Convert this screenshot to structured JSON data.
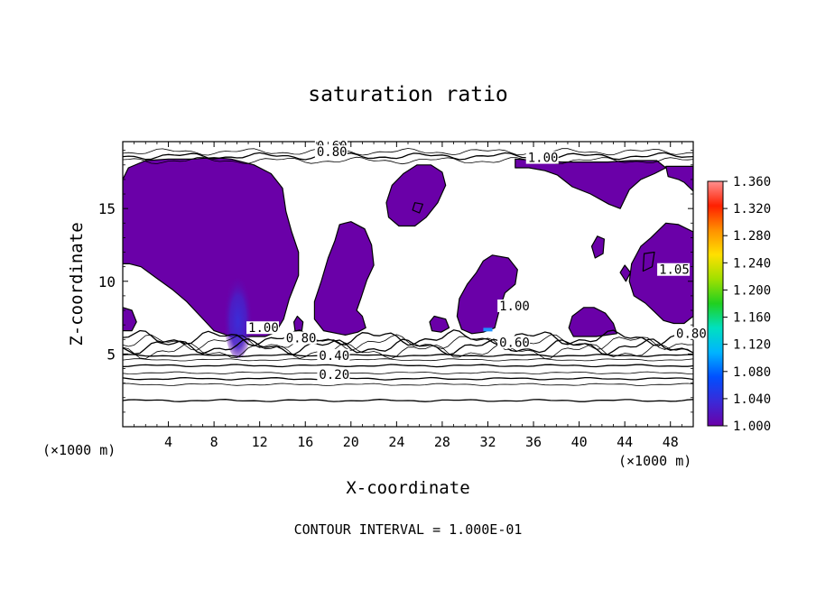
{
  "chart_data": {
    "type": "contour",
    "title": "saturation ratio",
    "xlabel": "X-coordinate",
    "ylabel": "Z-coordinate",
    "x_unit_label": "(×1000 m)",
    "x_unit_label_right": "(×1000 m)",
    "footer": "CONTOUR INTERVAL = 1.000E-01",
    "xlim": [
      0,
      50
    ],
    "ylim": [
      0,
      19.6
    ],
    "x_ticks": [
      4,
      8,
      12,
      16,
      20,
      24,
      28,
      32,
      36,
      40,
      44,
      48
    ],
    "x_tick_labels": [
      "4",
      "8",
      "12",
      "16",
      "20",
      "24",
      "28",
      "32",
      "36",
      "40",
      "44",
      "48"
    ],
    "y_ticks": [
      5,
      10,
      15
    ],
    "y_tick_labels": [
      "5",
      "10",
      "15"
    ],
    "contour_labels": [
      {
        "text": "0.60",
        "x": 17.0,
        "y": 19.0
      },
      {
        "text": "0.80",
        "x": 17.0,
        "y": 18.6
      },
      {
        "text": "1.00",
        "x": 35.5,
        "y": 18.2
      },
      {
        "text": "1.00",
        "x": 11.0,
        "y": 6.5
      },
      {
        "text": "0.80",
        "x": 14.3,
        "y": 5.8
      },
      {
        "text": "0.60",
        "x": 33.0,
        "y": 5.5
      },
      {
        "text": "0.40",
        "x": 17.2,
        "y": 4.6
      },
      {
        "text": "0.20",
        "x": 17.2,
        "y": 3.3
      },
      {
        "text": "1.00",
        "x": 33.0,
        "y": 8.0
      },
      {
        "text": "1.05",
        "x": 47.0,
        "y": 10.5
      },
      {
        "text": "0.80",
        "x": 48.5,
        "y": 6.1
      }
    ],
    "level_lines": [
      1.8,
      2.9,
      3.3,
      3.7,
      4.2,
      4.6,
      4.9,
      5.2,
      5.5,
      5.8,
      6.1,
      18.3,
      18.6,
      18.9
    ],
    "colorbar": {
      "min": 1.0,
      "max": 1.36,
      "tick_labels": [
        "1.360",
        "1.320",
        "1.280",
        "1.240",
        "1.200",
        "1.160",
        "1.120",
        "1.080",
        "1.040",
        "1.000"
      ],
      "colors": [
        "#6a00a8",
        "#3a2ad8",
        "#0050ff",
        "#00b4ff",
        "#00e0c0",
        "#20d020",
        "#a0e000",
        "#ffe000",
        "#ff9000",
        "#ff2000",
        "#ff9090"
      ]
    },
    "fill_color": "#6a00a8",
    "regions": [
      {
        "name": "region-1",
        "points": [
          [
            0,
            17.0
          ],
          [
            0.5,
            17.8
          ],
          [
            2,
            18.3
          ],
          [
            4,
            18.4
          ],
          [
            6,
            18.4
          ],
          [
            8,
            18.5
          ],
          [
            9.5,
            18.4
          ],
          [
            11.5,
            18.0
          ],
          [
            13,
            17.4
          ],
          [
            14,
            16.4
          ],
          [
            14.3,
            14.8
          ],
          [
            14.8,
            13.4
          ],
          [
            15.4,
            12.0
          ],
          [
            15.4,
            10.4
          ],
          [
            14.6,
            8.8
          ],
          [
            14.1,
            7.4
          ],
          [
            13.4,
            6.5
          ],
          [
            12.5,
            6.2
          ],
          [
            9.5,
            6.2
          ],
          [
            8.0,
            6.6
          ],
          [
            6.8,
            7.6
          ],
          [
            5.6,
            8.6
          ],
          [
            4.4,
            9.4
          ],
          [
            3.0,
            10.2
          ],
          [
            1.6,
            11.0
          ],
          [
            0.6,
            11.2
          ],
          [
            0,
            11.2
          ]
        ]
      },
      {
        "name": "region-2",
        "points": [
          [
            0,
            8.2
          ],
          [
            0.8,
            8.0
          ],
          [
            1.2,
            7.2
          ],
          [
            0.8,
            6.6
          ],
          [
            0,
            6.6
          ]
        ]
      },
      {
        "name": "region-3",
        "points": [
          [
            19.0,
            13.9
          ],
          [
            20.0,
            14.1
          ],
          [
            21.2,
            13.6
          ],
          [
            21.8,
            12.5
          ],
          [
            22.0,
            11.1
          ],
          [
            21.4,
            10.1
          ],
          [
            20.9,
            8.9
          ],
          [
            20.5,
            8.0
          ],
          [
            21.0,
            7.6
          ],
          [
            21.3,
            6.8
          ],
          [
            20.6,
            6.5
          ],
          [
            19.5,
            6.3
          ],
          [
            17.6,
            6.6
          ],
          [
            16.8,
            7.4
          ],
          [
            16.8,
            8.6
          ],
          [
            17.4,
            10.0
          ],
          [
            18.0,
            11.6
          ],
          [
            18.6,
            12.8
          ]
        ]
      },
      {
        "name": "region-4",
        "points": [
          [
            15.3,
            7.6
          ],
          [
            15.8,
            7.2
          ],
          [
            15.7,
            6.6
          ],
          [
            15.1,
            6.6
          ],
          [
            15.0,
            7.2
          ]
        ]
      },
      {
        "name": "region-5",
        "points": [
          [
            25.8,
            18.0
          ],
          [
            27.0,
            18.0
          ],
          [
            28.0,
            17.5
          ],
          [
            28.3,
            16.6
          ],
          [
            27.6,
            15.4
          ],
          [
            26.6,
            14.4
          ],
          [
            25.6,
            13.8
          ],
          [
            24.2,
            13.8
          ],
          [
            23.3,
            14.4
          ],
          [
            23.1,
            15.4
          ],
          [
            23.6,
            16.6
          ],
          [
            24.6,
            17.4
          ]
        ]
      },
      {
        "name": "region-6",
        "points": [
          [
            32.4,
            11.8
          ],
          [
            33.8,
            11.6
          ],
          [
            34.6,
            10.8
          ],
          [
            34.4,
            9.8
          ],
          [
            33.5,
            9.2
          ],
          [
            33.0,
            8.0
          ],
          [
            32.6,
            6.8
          ],
          [
            31.6,
            6.5
          ],
          [
            30.6,
            6.4
          ],
          [
            29.7,
            6.7
          ],
          [
            29.3,
            7.6
          ],
          [
            29.5,
            8.8
          ],
          [
            30.2,
            9.8
          ],
          [
            31.0,
            10.6
          ],
          [
            31.6,
            11.4
          ]
        ]
      },
      {
        "name": "region-7",
        "points": [
          [
            27.3,
            7.6
          ],
          [
            28.3,
            7.4
          ],
          [
            28.6,
            6.8
          ],
          [
            27.9,
            6.5
          ],
          [
            27.1,
            6.6
          ],
          [
            26.9,
            7.2
          ]
        ]
      },
      {
        "name": "region-8",
        "points": [
          [
            34.4,
            18.4
          ],
          [
            36.6,
            18.3
          ],
          [
            38.5,
            18.2
          ],
          [
            40.5,
            18.2
          ],
          [
            42.5,
            18.2
          ],
          [
            44.5,
            18.3
          ],
          [
            46.8,
            18.3
          ],
          [
            47.6,
            17.8
          ],
          [
            46.6,
            17.4
          ],
          [
            45.4,
            17.0
          ],
          [
            44.4,
            16.3
          ],
          [
            43.6,
            15.0
          ],
          [
            42.6,
            15.3
          ],
          [
            41.0,
            16.0
          ],
          [
            39.4,
            16.5
          ],
          [
            38.1,
            17.3
          ],
          [
            37.0,
            17.6
          ],
          [
            35.6,
            17.8
          ],
          [
            34.4,
            17.8
          ]
        ]
      },
      {
        "name": "region-9",
        "points": [
          [
            47.6,
            17.9
          ],
          [
            50.0,
            17.9
          ],
          [
            50.0,
            16.2
          ],
          [
            49.2,
            16.8
          ],
          [
            48.7,
            17.0
          ],
          [
            47.8,
            17.2
          ]
        ]
      },
      {
        "name": "region-10",
        "points": [
          [
            47.6,
            14.0
          ],
          [
            48.7,
            13.9
          ],
          [
            50.0,
            13.4
          ],
          [
            50.0,
            7.6
          ],
          [
            49.2,
            7.1
          ],
          [
            48.3,
            7.1
          ],
          [
            47.4,
            7.3
          ],
          [
            46.6,
            7.9
          ],
          [
            45.8,
            8.5
          ],
          [
            44.8,
            9.0
          ],
          [
            44.4,
            10.0
          ],
          [
            44.6,
            11.2
          ],
          [
            45.4,
            12.4
          ],
          [
            46.3,
            13.0
          ]
        ]
      },
      {
        "name": "region-11",
        "points": [
          [
            40.4,
            8.2
          ],
          [
            41.3,
            8.2
          ],
          [
            42.3,
            7.8
          ],
          [
            43.0,
            7.1
          ],
          [
            43.3,
            6.4
          ],
          [
            41.5,
            6.2
          ],
          [
            39.5,
            6.2
          ],
          [
            39.1,
            6.8
          ],
          [
            39.4,
            7.6
          ]
        ]
      },
      {
        "name": "region-12",
        "points": [
          [
            41.6,
            13.1
          ],
          [
            42.2,
            12.9
          ],
          [
            42.1,
            11.9
          ],
          [
            41.4,
            11.6
          ],
          [
            41.1,
            12.4
          ]
        ]
      },
      {
        "name": "region-13",
        "points": [
          [
            44.0,
            11.1
          ],
          [
            44.5,
            10.6
          ],
          [
            44.1,
            10.0
          ],
          [
            43.6,
            10.6
          ]
        ]
      },
      {
        "name": "region-14",
        "points": [
          [
            45.7,
            11.9
          ],
          [
            46.6,
            12.0
          ],
          [
            46.4,
            11.0
          ],
          [
            45.6,
            10.7
          ]
        ]
      },
      {
        "name": "region-15",
        "points": [
          [
            25.6,
            15.4
          ],
          [
            26.3,
            15.3
          ],
          [
            26.0,
            14.7
          ],
          [
            25.4,
            14.9
          ]
        ]
      }
    ],
    "plume": {
      "center": [
        10.1,
        7.9
      ],
      "radius": [
        1.3,
        3.2
      ],
      "peak": 1.04
    }
  }
}
